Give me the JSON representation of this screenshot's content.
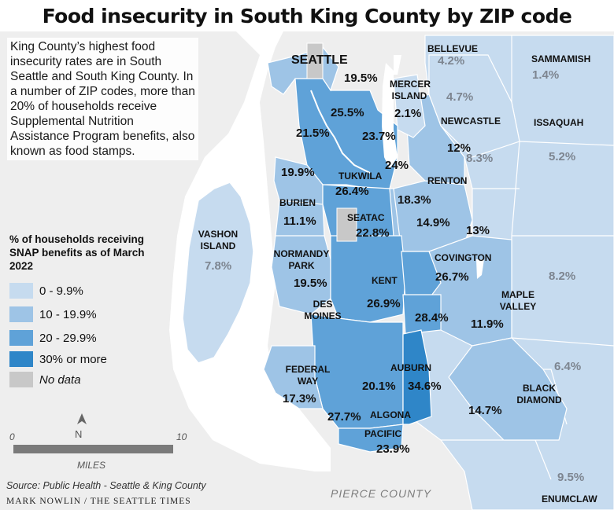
{
  "title": "Food insecurity in South King County by ZIP code",
  "intro": "King County’s highest food insecurity rates are in South Seattle and South King County. In a number of ZIP codes, more than 20% of households receive Supplemental Nutrition Assistance Program benefits, also known as food stamps.",
  "legend": {
    "title": "% of households receiving SNAP benefits as of March 2022",
    "items": [
      {
        "label": "0 - 9.9%",
        "color": "#c6dbef"
      },
      {
        "label": "10 - 19.9%",
        "color": "#9ec4e6"
      },
      {
        "label": "20 - 29.9%",
        "color": "#5fa2d8"
      },
      {
        "label": "30% or more",
        "color": "#2f86c8"
      },
      {
        "label": "No data",
        "color": "#c8c8c8"
      }
    ]
  },
  "scale": {
    "min": "0",
    "max": "10",
    "unit": "MILES",
    "north": "N"
  },
  "places": {
    "seattle": "SEATTLE",
    "bellevue": "BELLEVUE",
    "sammamish": "SAMMAMISH",
    "mercer_island": "MERCER ISLAND",
    "newcastle": "NEWCASTLE",
    "issaquah": "ISSAQUAH",
    "tukwila": "TUKWILA",
    "renton": "RENTON",
    "burien": "BURIEN",
    "seatac": "SEATAC",
    "vashon": "VASHON ISLAND",
    "normandy_park": "NORMANDY PARK",
    "kent": "KENT",
    "covington": "COVINGTON",
    "des_moines": "DES MOINES",
    "maple_valley": "MAPLE VALLEY",
    "federal_way": "FEDERAL WAY",
    "auburn": "AUBURN",
    "black_diamond": "BLACK DIAMOND",
    "algona": "ALGONA",
    "pacific": "PACIFIC",
    "enumclaw": "ENUMCLAW",
    "pierce_county": "PIERCE COUNTY"
  },
  "values": {
    "seattle_north": "19.5%",
    "bellevue": "4.2%",
    "sammamish": "1.4%",
    "bellevue_south": "4.7%",
    "mercer_island": "2.1%",
    "seattle_central": "25.5%",
    "seattle_west": "21.5%",
    "seattle_south": "23.7%",
    "newcastle": "12%",
    "newcastle_east": "8.3%",
    "issaquah": "5.2%",
    "west_seattle": "19.9%",
    "renton_west": "24%",
    "tukwila": "26.4%",
    "renton": "18.3%",
    "burien": "11.1%",
    "seatac": "22.8%",
    "renton_south": "14.9%",
    "fairwood": "13%",
    "vashon": "7.8%",
    "normandy_park": "19.5%",
    "kent_east": "26.7%",
    "hobart": "8.2%",
    "kent": "26.9%",
    "kent_south": "28.4%",
    "maple_valley": "11.9%",
    "ravensdale": "6.4%",
    "federal_way": "17.3%",
    "auburn_west": "20.1%",
    "auburn": "34.6%",
    "black_diamond": "14.7%",
    "federal_way_south": "27.7%",
    "pacific": "23.9%",
    "enumclaw": "9.5%"
  },
  "source": "Source: Public Health - Seattle & King County",
  "credit": "MARK NOWLIN / THE SEATTLE TIMES"
}
